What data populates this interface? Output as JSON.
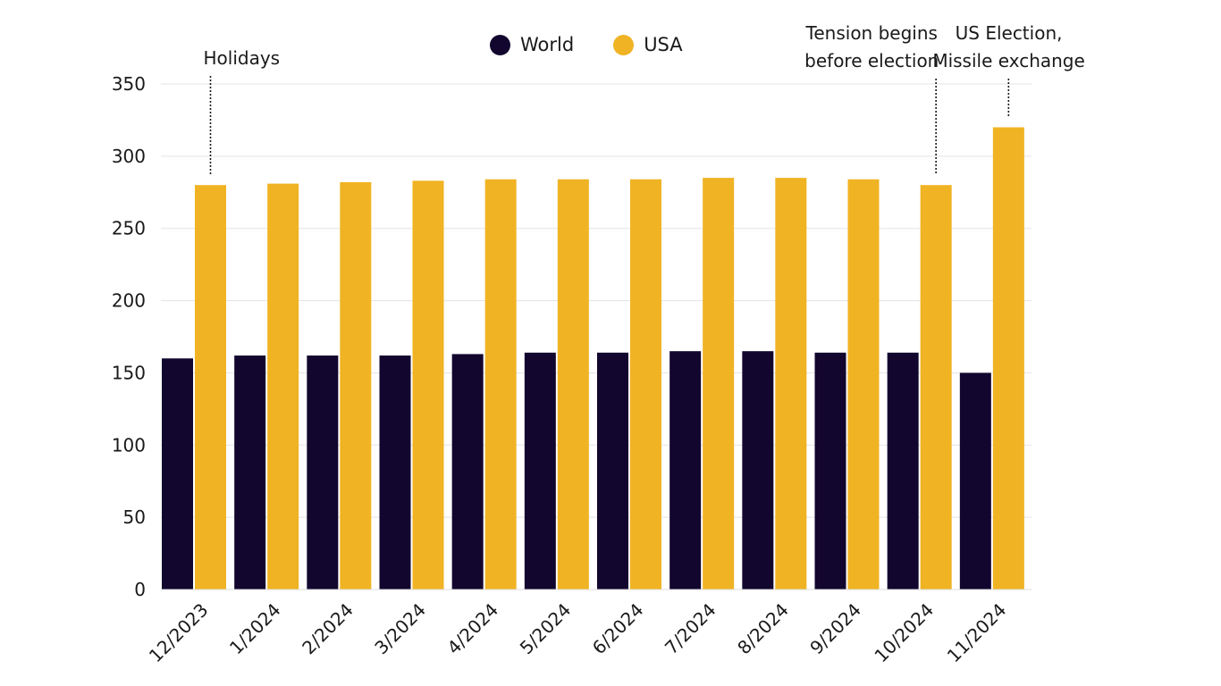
{
  "chart_data": {
    "type": "bar",
    "categories": [
      "12/2023",
      "1/2024",
      "2/2024",
      "3/2024",
      "4/2024",
      "5/2024",
      "6/2024",
      "7/2024",
      "8/2024",
      "9/2024",
      "10/2024",
      "11/2024"
    ],
    "series": [
      {
        "name": "World",
        "color": "#12052e",
        "values": [
          160,
          162,
          162,
          162,
          163,
          164,
          164,
          165,
          165,
          164,
          164,
          150
        ]
      },
      {
        "name": "USA",
        "color": "#f0b323",
        "values": [
          280,
          281,
          282,
          283,
          284,
          284,
          284,
          285,
          285,
          284,
          280,
          320
        ]
      }
    ],
    "yticks": [
      0,
      50,
      100,
      150,
      200,
      250,
      300,
      350
    ],
    "ylim": [
      0,
      350
    ],
    "grid": true,
    "legend_position": "top",
    "annotations": [
      {
        "text": "Holidays",
        "category": "12/2023"
      },
      {
        "text": "Tension begins\nbefore election",
        "category": "10/2024"
      },
      {
        "text": "US Election,\nMissile exchange",
        "category": "11/2024"
      }
    ]
  },
  "legend": {
    "world_label": "World",
    "usa_label": "USA"
  }
}
